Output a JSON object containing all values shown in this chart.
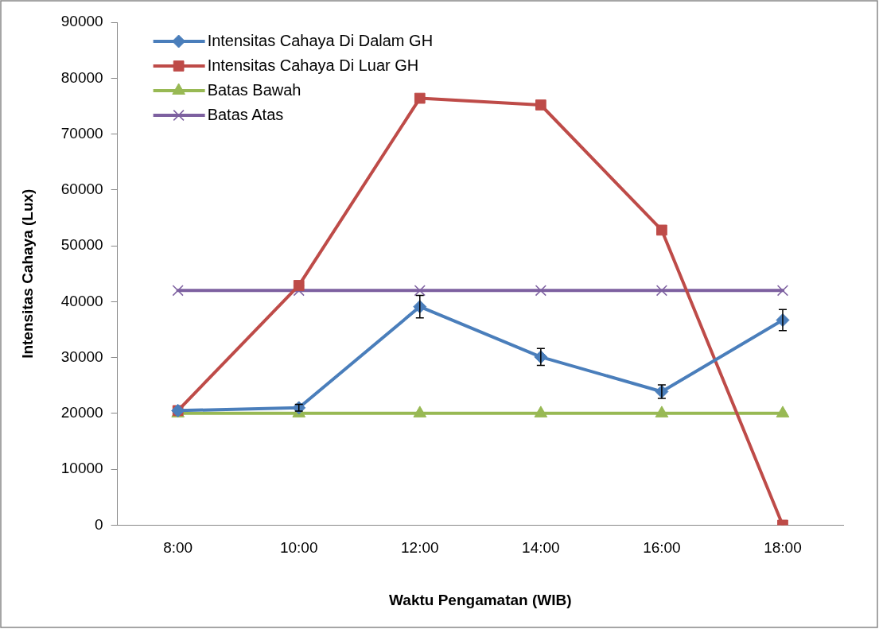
{
  "chart_data": {
    "type": "line",
    "xlabel": "Waktu Pengamatan (WIB)",
    "ylabel": "Intensitas Cahaya (Lux)",
    "categories": [
      "8:00",
      "10:00",
      "12:00",
      "14:00",
      "16:00",
      "18:00"
    ],
    "ylim": [
      0,
      90000
    ],
    "yticks": [
      0,
      10000,
      20000,
      30000,
      40000,
      50000,
      60000,
      70000,
      80000,
      90000
    ],
    "grid": false,
    "legend": "top left",
    "line_style": "solid",
    "series": [
      {
        "name": "Intensitas Cahaya Di Dalam GH",
        "color": "#4a7ebb",
        "marker": "diamond",
        "values": [
          20500,
          21000,
          39100,
          30100,
          23900,
          36700
        ],
        "errors": [
          null,
          600,
          2000,
          1500,
          1200,
          1900
        ]
      },
      {
        "name": "Intensitas Cahaya Di Luar GH",
        "color": "#be4b48",
        "marker": "square",
        "values": [
          20500,
          42900,
          76400,
          75200,
          52800,
          0
        ]
      },
      {
        "name": "Batas Bawah",
        "color": "#98b954",
        "marker": "triangle",
        "values": [
          20000,
          20000,
          20000,
          20000,
          20000,
          20000
        ]
      },
      {
        "name": "Batas Atas",
        "color": "#7d60a0",
        "marker": "cross",
        "values": [
          42000,
          42000,
          42000,
          42000,
          42000,
          42000
        ]
      }
    ]
  }
}
